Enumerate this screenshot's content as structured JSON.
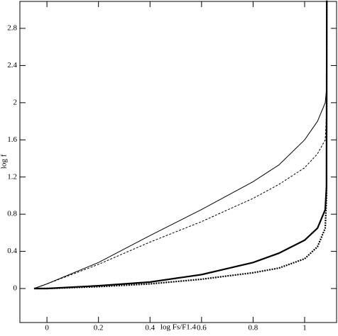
{
  "chart_data": {
    "type": "line",
    "xlabel": "log Fs/F1.4",
    "ylabel": "log f",
    "x": [
      -0.05,
      0,
      0.2,
      0.4,
      0.6,
      0.8,
      0.9,
      1.0,
      1.05,
      1.08,
      1.085,
      1.086
    ],
    "series": [
      {
        "color": "#000000",
        "width": 1,
        "dash": "none",
        "values": [
          0,
          0.05,
          0.28,
          0.57,
          0.85,
          1.15,
          1.33,
          1.6,
          1.8,
          2.0,
          2.15,
          3.1
        ]
      },
      {
        "color": "#000000",
        "width": 1,
        "dash": "3,2",
        "values": [
          0,
          0.05,
          0.26,
          0.5,
          0.72,
          0.97,
          1.12,
          1.3,
          1.45,
          1.6,
          1.9,
          3.1
        ]
      },
      {
        "color": "#000000",
        "width": 2.2,
        "dash": "none",
        "values": [
          0,
          0.0,
          0.03,
          0.07,
          0.15,
          0.28,
          0.38,
          0.52,
          0.65,
          0.85,
          1.1,
          3.1
        ]
      },
      {
        "color": "#000000",
        "width": 2.2,
        "dash": "2,1.5",
        "values": [
          0,
          0.0,
          0.02,
          0.05,
          0.1,
          0.17,
          0.22,
          0.32,
          0.45,
          0.65,
          1.0,
          3.1
        ]
      }
    ],
    "xlim": [
      -0.105,
      1.124
    ],
    "ylim": [
      -0.366,
      3.09
    ],
    "xticks": [
      0,
      0.2,
      0.4,
      0.6,
      0.8,
      1
    ],
    "yticks": [
      0,
      0.4,
      0.8,
      1.2,
      1.6,
      2,
      2.4,
      2.8
    ]
  }
}
